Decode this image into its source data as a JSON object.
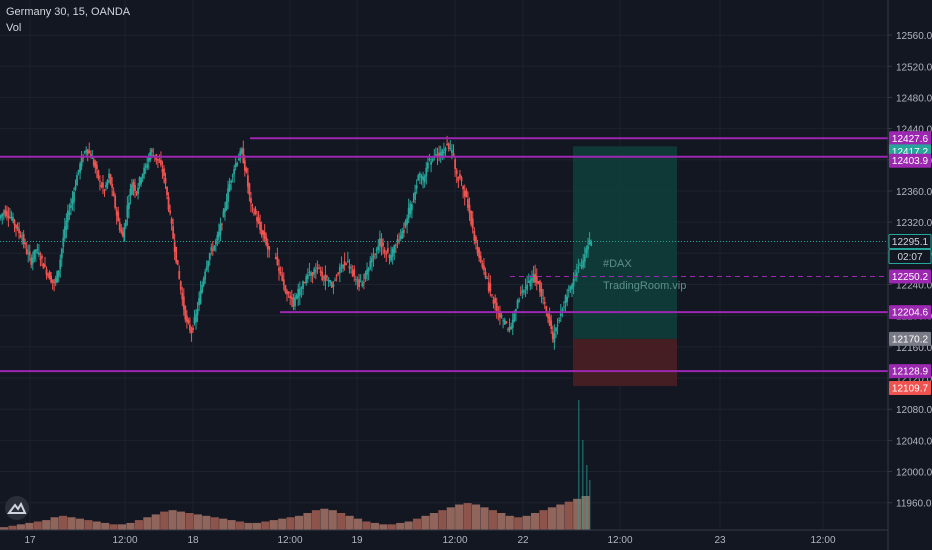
{
  "header": {
    "symbol_line": "Germany 30, 15, OANDA",
    "volume_label": "Vol"
  },
  "watermark": {
    "tag": "#DAX",
    "site": "TradingRoom.vip"
  },
  "colors": {
    "background": "#131722",
    "grid": "#1e222d",
    "text": "#b2b5be",
    "bull": "#26a69a",
    "bear": "#ef5350",
    "level": "#9c27b0",
    "profit_zone": "#0f3d3a",
    "loss_zone": "#4a1f24"
  },
  "chart_data": {
    "type": "candlestick",
    "title": "Germany 30, 15, OANDA",
    "price_axis": {
      "range": [
        11925,
        12605
      ],
      "ticks": [
        11960,
        12000,
        12040,
        12080,
        12120,
        12160,
        12200,
        12240,
        12280,
        12320,
        12360,
        12400,
        12440,
        12480,
        12520,
        12560
      ]
    },
    "time_axis": {
      "ticks": [
        "17",
        "12:00",
        "18",
        "12:00",
        "19",
        "12:00",
        "22",
        "12:00",
        "23",
        "12:00"
      ]
    },
    "horizontal_levels": [
      12427.6,
      12403.9,
      12204.6,
      12128.9
    ],
    "price_labels": [
      {
        "text": "12427.6",
        "kind": "level"
      },
      {
        "text": "12417.2",
        "kind": "target"
      },
      {
        "text": "12403.9",
        "kind": "level"
      },
      {
        "text": "12295.1",
        "kind": "last"
      },
      {
        "text": "02:07",
        "kind": "countdown"
      },
      {
        "text": "12250.2",
        "kind": "level"
      },
      {
        "text": "12204.6",
        "kind": "level"
      },
      {
        "text": "12170.2",
        "kind": "entry"
      },
      {
        "text": "12128.9",
        "kind": "level"
      },
      {
        "text": "12109.7",
        "kind": "stop"
      }
    ],
    "last_price": 12295.1,
    "dashed_level": 12250.2,
    "position": {
      "target": 12417.2,
      "entry": 12170.2,
      "stop": 12109.7
    },
    "price_path": [
      [
        12325,
        12334,
        12330,
        12322,
        12310,
        12300,
        12282,
        12270,
        12285,
        12275,
        12260,
        12250,
        12240,
        12260,
        12300,
        12330,
        12350,
        12380,
        12400,
        12415,
        12405,
        12390,
        12370,
        12360,
        12380,
        12350,
        12320,
        12300,
        12340,
        12370,
        12360,
        12380,
        12390,
        12410,
        12405,
        12395,
        12380,
        12340,
        12300,
        12260,
        12220,
        12190,
        12180,
        12200,
        12230,
        12260,
        12280,
        12290,
        12305,
        12330,
        12360,
        12385,
        12400,
        12410,
        12380,
        12340,
        12330,
        12310,
        12300,
        12280
      ],
      [
        12280,
        12260,
        12240,
        12225,
        12215,
        12230,
        12240,
        12250,
        12255,
        12260,
        12250,
        12245,
        12240,
        12255,
        12265,
        12270,
        12260,
        12245,
        12240,
        12250,
        12270,
        12280,
        12295,
        12285,
        12275,
        12290,
        12300,
        12310,
        12335,
        12350,
        12380,
        12375,
        12395,
        12400,
        12405,
        12410,
        12420,
        12410,
        12380,
        12370,
        12350,
        12320,
        12290,
        12270,
        12250,
        12230,
        12215,
        12200,
        12190,
        12180,
        12200,
        12225,
        12235,
        12240,
        12250,
        12240,
        12220,
        12200,
        12170,
        12190,
        12210,
        12228,
        12240,
        12260,
        12265,
        12288,
        12295
      ]
    ],
    "volume_profile": [
      2,
      3,
      4,
      5,
      6,
      7,
      9,
      10,
      9,
      8,
      7,
      6,
      5,
      4,
      4,
      5,
      7,
      9,
      11,
      13,
      14,
      13,
      12,
      11,
      10,
      9,
      8,
      7,
      6,
      5,
      5,
      6,
      7,
      8,
      9,
      10,
      12,
      14,
      15,
      14,
      12,
      10,
      8,
      6,
      5,
      4,
      4,
      5,
      6,
      8,
      10,
      12,
      14,
      16,
      18,
      19,
      18,
      16,
      14,
      12,
      10,
      9,
      10,
      12,
      14,
      16,
      18,
      20,
      22,
      24
    ]
  }
}
